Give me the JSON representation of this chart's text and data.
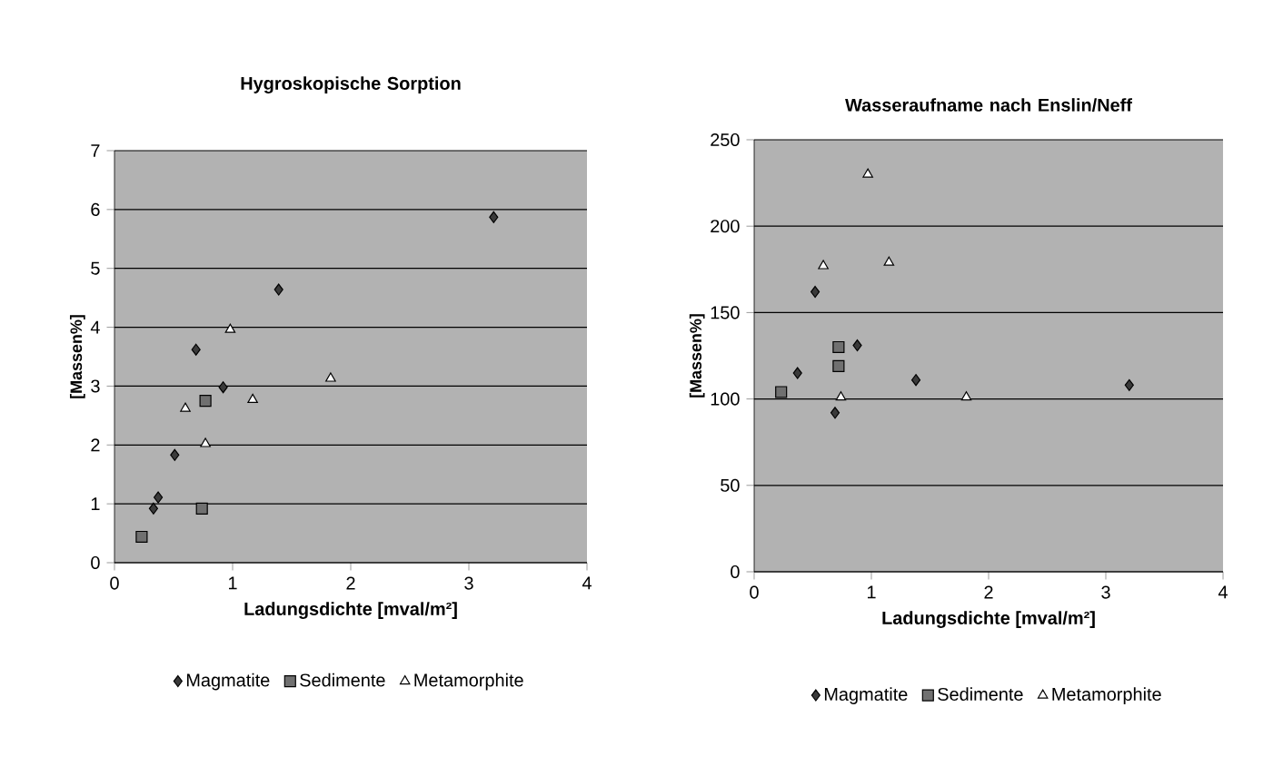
{
  "chart_data": [
    {
      "type": "scatter",
      "title": "Hygroskopische Sorption",
      "xlabel": "Ladungsdichte [mval/m²]",
      "ylabel": "[Massen%]",
      "xlim": [
        0,
        4
      ],
      "ylim": [
        0,
        7
      ],
      "xticks": [
        0,
        1,
        2,
        3,
        4
      ],
      "yticks": [
        0,
        1,
        2,
        3,
        4,
        5,
        6,
        7
      ],
      "grid": "y",
      "legend": "bottom",
      "series": [
        {
          "name": "Magmatite",
          "color": "#3a3a3a",
          "marker": "diamond",
          "x": [
            0.33,
            0.37,
            0.51,
            0.69,
            0.92,
            1.39,
            3.21
          ],
          "values": [
            0.92,
            1.11,
            1.83,
            3.62,
            2.98,
            4.64,
            5.87
          ]
        },
        {
          "name": "Sedimente",
          "color": "#707070",
          "marker": "square",
          "x": [
            0.23,
            0.74,
            0.77
          ],
          "values": [
            0.44,
            0.92,
            2.75
          ]
        },
        {
          "name": "Metamorphite",
          "color": "#ffffff",
          "marker": "triangle",
          "x": [
            0.6,
            0.77,
            0.98,
            1.17,
            1.83
          ],
          "values": [
            2.62,
            2.02,
            3.96,
            2.77,
            3.13
          ]
        }
      ]
    },
    {
      "type": "scatter",
      "title": "Wasseraufname nach Enslin/Neff",
      "xlabel": "Ladungsdichte [mval/m²]",
      "ylabel": "[Massen%]",
      "xlim": [
        0,
        4
      ],
      "ylim": [
        0,
        250
      ],
      "xticks": [
        0,
        1,
        2,
        3,
        4
      ],
      "yticks": [
        0,
        50,
        100,
        150,
        200,
        250
      ],
      "grid": "y",
      "legend": "bottom",
      "series": [
        {
          "name": "Magmatite",
          "color": "#3a3a3a",
          "marker": "diamond",
          "x": [
            0.37,
            0.52,
            0.69,
            0.88,
            1.38,
            3.2
          ],
          "values": [
            115,
            162,
            92,
            131,
            111,
            108
          ]
        },
        {
          "name": "Sedimente",
          "color": "#707070",
          "marker": "square",
          "x": [
            0.23,
            0.72,
            0.72
          ],
          "values": [
            104,
            130,
            119
          ]
        },
        {
          "name": "Metamorphite",
          "color": "#ffffff",
          "marker": "triangle",
          "x": [
            0.59,
            0.74,
            0.97,
            1.15,
            1.81
          ],
          "values": [
            177,
            101,
            230,
            179,
            101
          ]
        }
      ]
    }
  ]
}
